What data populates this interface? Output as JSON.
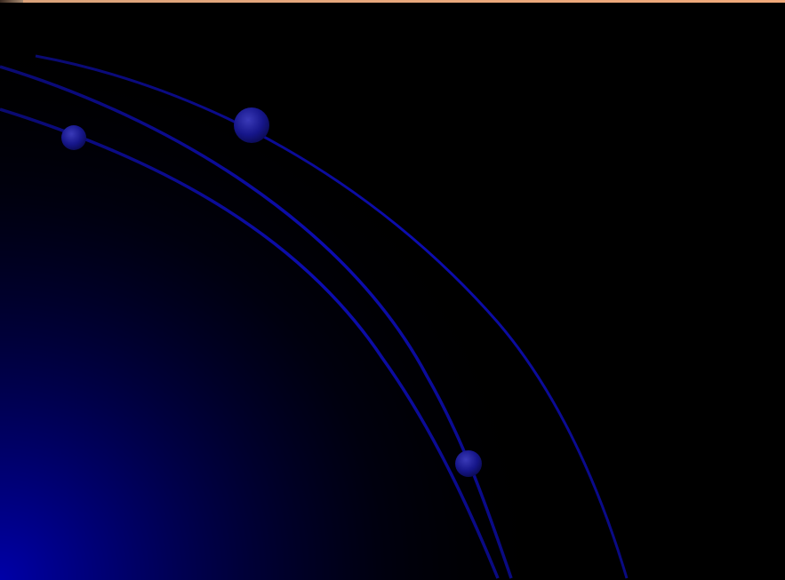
{
  "slide": {
    "background_color": "#000000",
    "glow_color": "#0000a0",
    "arc_color": "#0a0aa8",
    "orb_color": "#1a1a8a",
    "top_strip_color": "#e6a77c"
  }
}
